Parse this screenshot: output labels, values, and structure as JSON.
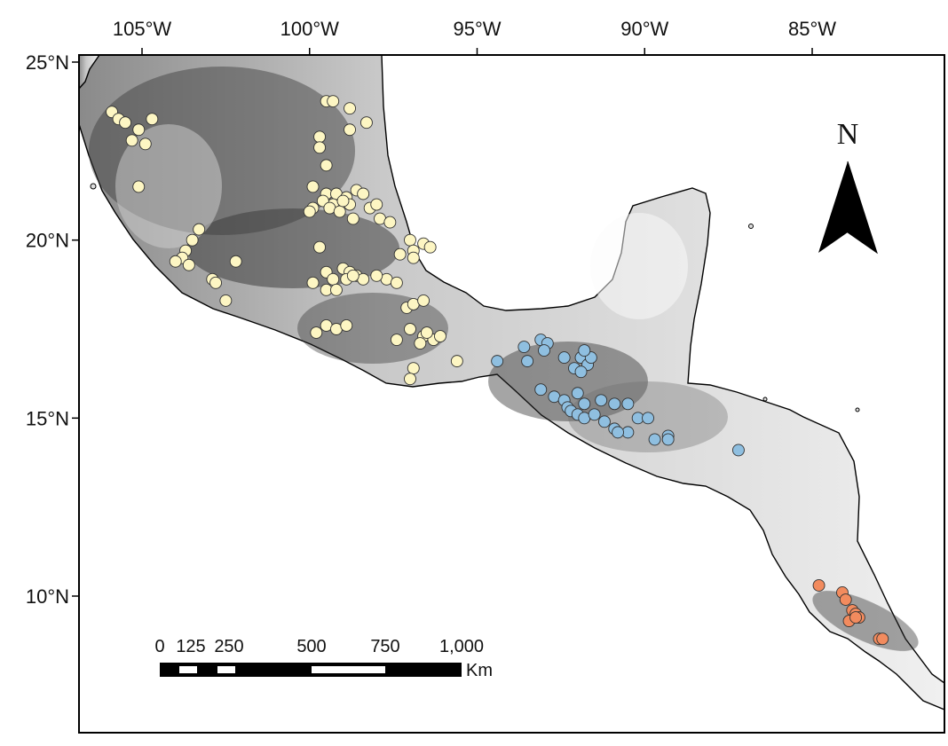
{
  "map": {
    "lon_range": [
      -107.0,
      -82.0
    ],
    "lat_range": [
      7.0,
      25.0
    ],
    "longitude_ticks": [
      {
        "value": -105,
        "label": "105°W"
      },
      {
        "value": -100,
        "label": "100°W"
      },
      {
        "value": -95,
        "label": "95°W"
      },
      {
        "value": -90,
        "label": "90°W"
      },
      {
        "value": -85,
        "label": "85°W"
      }
    ],
    "latitude_ticks": [
      {
        "value": 25,
        "label": "25°N"
      },
      {
        "value": 20,
        "label": "20°N"
      },
      {
        "value": 15,
        "label": "15°N"
      },
      {
        "value": 10,
        "label": "10°N"
      }
    ],
    "north_arrow": {
      "label": "N"
    },
    "scale_bar": {
      "labels": [
        "0",
        "125",
        "250",
        "500",
        "750",
        "1,000"
      ],
      "unit": "Km"
    },
    "colors": {
      "group_1": "#fdf6c3",
      "group_2": "#8fbfe0",
      "group_3": "#f28b5e",
      "point_outline": "#333333",
      "land_light": "#f2f2f2",
      "land_dark": "#3a3a3a"
    },
    "points": {
      "group_1": [
        [
          -105.9,
          23.6
        ],
        [
          -105.7,
          23.4
        ],
        [
          -105.5,
          23.3
        ],
        [
          -105.1,
          23.1
        ],
        [
          -104.7,
          23.4
        ],
        [
          -105.3,
          22.8
        ],
        [
          -104.9,
          22.7
        ],
        [
          -105.1,
          21.5
        ],
        [
          -103.3,
          20.3
        ],
        [
          -103.5,
          20.0
        ],
        [
          -103.7,
          19.7
        ],
        [
          -103.8,
          19.5
        ],
        [
          -103.6,
          19.3
        ],
        [
          -104.0,
          19.4
        ],
        [
          -102.2,
          19.4
        ],
        [
          -102.9,
          18.9
        ],
        [
          -102.8,
          18.8
        ],
        [
          -102.5,
          18.3
        ],
        [
          -99.5,
          23.9
        ],
        [
          -99.3,
          23.9
        ],
        [
          -98.8,
          23.7
        ],
        [
          -98.3,
          23.3
        ],
        [
          -99.7,
          22.9
        ],
        [
          -99.7,
          22.6
        ],
        [
          -99.5,
          22.1
        ],
        [
          -98.8,
          23.1
        ],
        [
          -99.9,
          21.5
        ],
        [
          -99.5,
          21.3
        ],
        [
          -99.2,
          21.3
        ],
        [
          -98.9,
          21.2
        ],
        [
          -98.6,
          21.4
        ],
        [
          -98.4,
          21.3
        ],
        [
          -99.3,
          21.0
        ],
        [
          -99.6,
          21.1
        ],
        [
          -99.9,
          20.9
        ],
        [
          -100.0,
          20.8
        ],
        [
          -99.4,
          20.9
        ],
        [
          -99.1,
          20.8
        ],
        [
          -98.7,
          20.6
        ],
        [
          -98.2,
          20.9
        ],
        [
          -98.0,
          21.0
        ],
        [
          -98.8,
          21.0
        ],
        [
          -99.0,
          21.1
        ],
        [
          -97.9,
          20.6
        ],
        [
          -97.6,
          20.5
        ],
        [
          -97.0,
          20.0
        ],
        [
          -96.6,
          19.9
        ],
        [
          -96.4,
          19.8
        ],
        [
          -96.9,
          19.7
        ],
        [
          -97.3,
          19.6
        ],
        [
          -96.9,
          19.5
        ],
        [
          -99.7,
          19.8
        ],
        [
          -99.5,
          19.1
        ],
        [
          -99.3,
          18.9
        ],
        [
          -99.0,
          19.2
        ],
        [
          -98.8,
          19.1
        ],
        [
          -98.6,
          19.0
        ],
        [
          -98.4,
          18.9
        ],
        [
          -97.7,
          18.9
        ],
        [
          -97.4,
          18.8
        ],
        [
          -99.9,
          18.8
        ],
        [
          -99.5,
          18.6
        ],
        [
          -99.2,
          18.6
        ],
        [
          -98.9,
          18.9
        ],
        [
          -98.7,
          19.0
        ],
        [
          -98.0,
          19.0
        ],
        [
          -97.1,
          18.1
        ],
        [
          -96.9,
          18.2
        ],
        [
          -96.6,
          18.3
        ],
        [
          -97.0,
          17.5
        ],
        [
          -97.4,
          17.2
        ],
        [
          -96.6,
          17.3
        ],
        [
          -96.3,
          17.2
        ],
        [
          -96.1,
          17.3
        ],
        [
          -96.5,
          17.4
        ],
        [
          -96.7,
          17.1
        ],
        [
          -99.5,
          17.6
        ],
        [
          -99.2,
          17.5
        ],
        [
          -99.8,
          17.4
        ],
        [
          -98.9,
          17.6
        ],
        [
          -96.9,
          16.4
        ],
        [
          -97.0,
          16.1
        ],
        [
          -95.6,
          16.6
        ]
      ],
      "group_2": [
        [
          -94.4,
          16.6
        ],
        [
          -93.6,
          17.0
        ],
        [
          -93.1,
          17.2
        ],
        [
          -92.9,
          17.1
        ],
        [
          -93.0,
          16.9
        ],
        [
          -93.5,
          16.6
        ],
        [
          -92.4,
          16.7
        ],
        [
          -92.1,
          16.4
        ],
        [
          -91.9,
          16.7
        ],
        [
          -91.7,
          16.5
        ],
        [
          -91.9,
          16.3
        ],
        [
          -91.6,
          16.7
        ],
        [
          -91.8,
          16.9
        ],
        [
          -93.1,
          15.8
        ],
        [
          -92.7,
          15.6
        ],
        [
          -92.4,
          15.5
        ],
        [
          -92.3,
          15.3
        ],
        [
          -92.2,
          15.2
        ],
        [
          -92.0,
          15.1
        ],
        [
          -91.8,
          15.0
        ],
        [
          -92.0,
          15.7
        ],
        [
          -91.8,
          15.4
        ],
        [
          -91.5,
          15.1
        ],
        [
          -91.2,
          14.9
        ],
        [
          -90.9,
          14.7
        ],
        [
          -90.5,
          14.6
        ],
        [
          -90.8,
          14.6
        ],
        [
          -91.3,
          15.5
        ],
        [
          -90.9,
          15.4
        ],
        [
          -90.5,
          15.4
        ],
        [
          -90.2,
          15.0
        ],
        [
          -89.9,
          15.0
        ],
        [
          -89.7,
          14.4
        ],
        [
          -89.3,
          14.5
        ],
        [
          -89.3,
          14.4
        ],
        [
          -87.2,
          14.1
        ]
      ],
      "group_3": [
        [
          -84.8,
          10.3
        ],
        [
          -84.1,
          10.1
        ],
        [
          -84.0,
          9.9
        ],
        [
          -83.8,
          9.6
        ],
        [
          -83.7,
          9.5
        ],
        [
          -83.9,
          9.3
        ],
        [
          -83.6,
          9.4
        ],
        [
          -83.7,
          9.4
        ],
        [
          -83.0,
          8.8
        ],
        [
          -82.9,
          8.8
        ]
      ]
    }
  }
}
